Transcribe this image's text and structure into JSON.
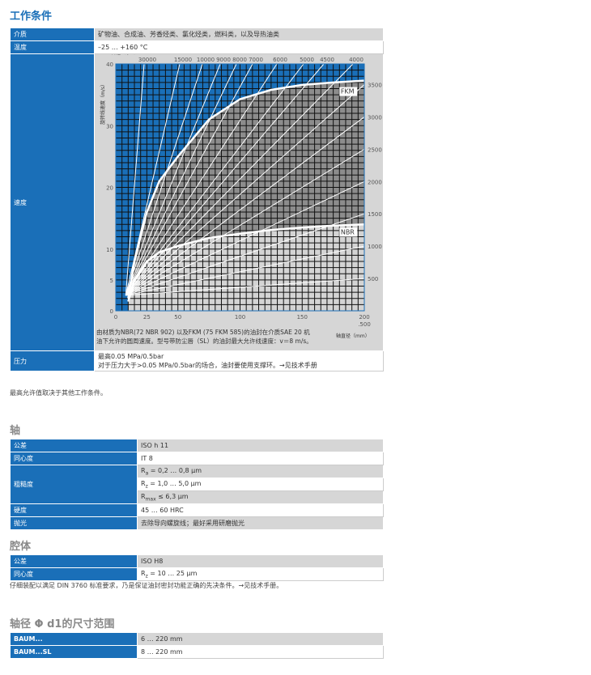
{
  "conditions": {
    "title": "工作条件",
    "rows": [
      {
        "label": "介质",
        "value": "矿物油、合成油、芳香烃类、氯化烃类，燃料类，以及导热油类"
      },
      {
        "label": "温度",
        "value": "–25 … +160 °C"
      },
      {
        "label": "速度"
      },
      {
        "label": "压力",
        "value": "最高0.05 MPa/0.5bar",
        "value2": "对于压力大于>0.05 MPa/0.5bar的场合，油封要使用支撑环。→见技术手册"
      }
    ],
    "note": "最高允许值取决于其他工作条件。"
  },
  "chart_data": {
    "type": "line",
    "xlabel": "轴直径（mm）",
    "ylabel": "旋转线速度（m/s）",
    "top_label": "转速（r/m）",
    "xlim": [
      0,
      200
    ],
    "ylim": [
      0,
      40
    ],
    "x_ticks": [
      "0",
      "25",
      "50",
      "100",
      "150",
      "200"
    ],
    "x_extra": ".500",
    "y_ticks": [
      "0",
      "5",
      "10",
      "20",
      "30",
      "40"
    ],
    "rpm_top": [
      30000,
      15000,
      10000,
      9000,
      8000,
      7000,
      6000,
      5000,
      4500,
      4000
    ],
    "rpm_right": [
      3500,
      3000,
      2500,
      2000,
      1500,
      1000,
      500
    ],
    "rpm_right_labels": [
      "3500",
      "3000",
      "2500",
      "2000",
      "1500",
      "1000",
      "500"
    ],
    "series": [
      {
        "name": "FKM",
        "x": [
          10,
          15,
          25,
          35,
          50,
          75,
          100,
          125,
          150,
          175,
          200
        ],
        "y": [
          2,
          8,
          16,
          21,
          25,
          31,
          34.3,
          35.8,
          36.6,
          37,
          37.3
        ]
      },
      {
        "name": "NBR",
        "x": [
          10,
          15,
          25,
          35,
          50,
          75,
          100,
          125,
          150,
          175,
          200
        ],
        "y": [
          1.5,
          5,
          8,
          9.5,
          10.5,
          11.8,
          12.5,
          13.1,
          13.5,
          13.8,
          14
        ]
      }
    ],
    "caption": "由材质为NBR(72 NBR 902) 以及FKM (75 FKM 585)的油封在介质SAE 20 机油下允许的圆周速度。型号带防尘唇（SL）的油封最大允许线速度：v＝8 m/s。",
    "colors": {
      "above": "#1a6fb8",
      "fkm": "#8c8c8c",
      "nbr": "#d4d4d4"
    }
  },
  "shaft": {
    "title": "轴",
    "rows": [
      {
        "label": "公差",
        "value": "ISO h 11"
      },
      {
        "label": "同心度",
        "value": "IT 8"
      },
      {
        "label": "粗糙度",
        "values": [
          {
            "R": "R",
            "sub": "a",
            "rest": " = 0,2 … 0,8 µm"
          },
          {
            "R": "R",
            "sub": "z",
            "rest": " = 1,0 … 5,0 µm"
          },
          {
            "R": "R",
            "sub": "max",
            "rest": " ≤ 6,3 µm"
          }
        ]
      },
      {
        "label": "硬度",
        "value": "45 … 60 HRC"
      },
      {
        "label": "抛光",
        "value": "去除导向螺旋线；最好采用研磨抛光"
      }
    ]
  },
  "housing": {
    "title": "腔体",
    "rows": [
      {
        "label": "公差",
        "value": "ISO H8"
      },
      {
        "label": "同心度",
        "R": "R",
        "sub": "z",
        "rest": " = 10 … 25 µm"
      }
    ],
    "note": "仔细装配以满足 DIN 3760 标准要求，乃是保证油封密封功能正确的先决条件。→见技术手册。"
  },
  "sizes": {
    "title": "轴径 Φ d1的尺寸范围",
    "rows": [
      {
        "label": "BAUM...",
        "value": "6 … 220 mm"
      },
      {
        "label": "BAUM...SL",
        "value": "8 … 220 mm"
      }
    ]
  }
}
